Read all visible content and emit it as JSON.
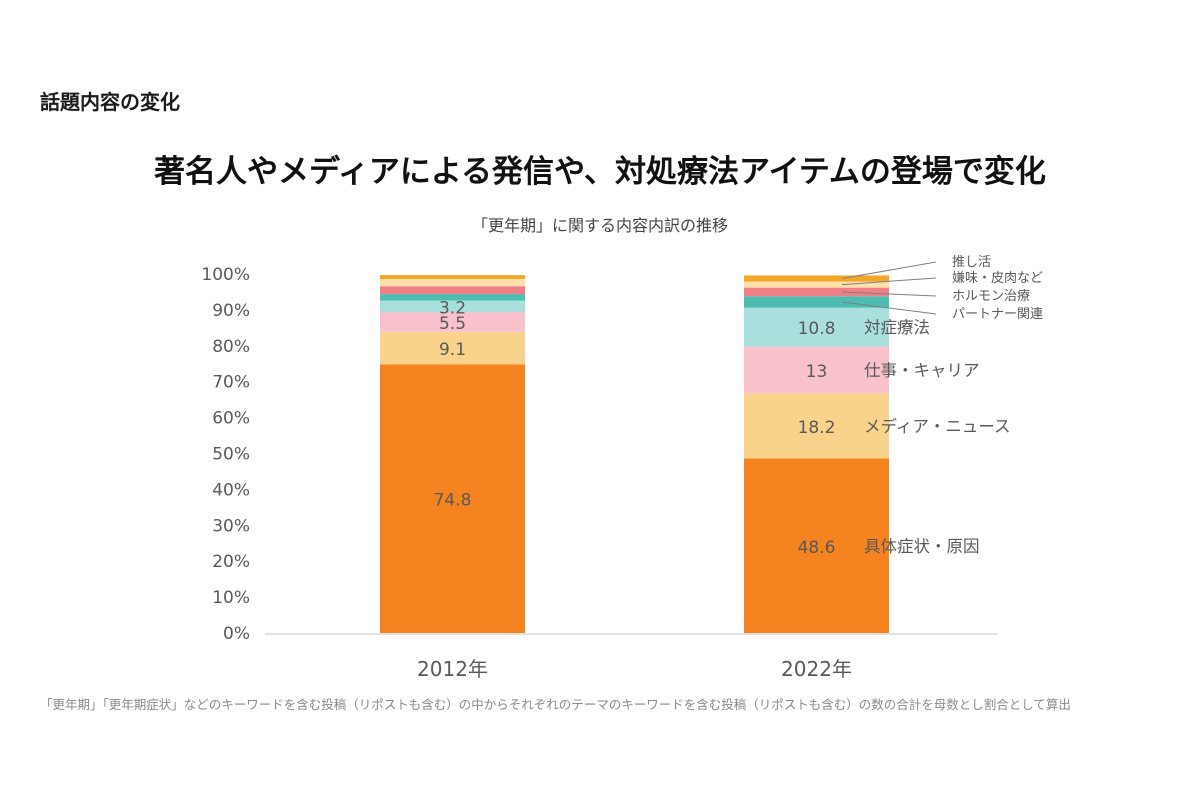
{
  "header": {
    "section_label": "話題内容の変化",
    "headline": "著名人やメディアによる発信や、対処療法アイテムの登場で変化"
  },
  "footnote": "「更年期」「更年期症状」などのキーワードを含む投稿（リポストも含む）の中からそれぞれのテーマのキーワードを含む投稿（リポストも含む）の数の合計を母数とし割合として算出",
  "chart_data": {
    "type": "bar",
    "stacked": true,
    "title": "「更年期」に関する内容内訳の推移",
    "xlabel": "",
    "ylabel": "",
    "ylim": [
      0,
      100
    ],
    "y_ticks": [
      "0%",
      "10%",
      "20%",
      "30%",
      "40%",
      "50%",
      "60%",
      "70%",
      "80%",
      "90%",
      "100%"
    ],
    "grid": false,
    "categories": [
      "2012年",
      "2022年"
    ],
    "series": [
      {
        "name": "具体症状・原因",
        "values": [
          74.8,
          48.6
        ],
        "labels": [
          "74.8",
          "48.6"
        ],
        "color": "#f58420"
      },
      {
        "name": "メディア・ニュース",
        "values": [
          9.1,
          18.2
        ],
        "labels": [
          "9.1",
          "18.2"
        ],
        "color": "#f9d28b"
      },
      {
        "name": "仕事・キャリア",
        "values": [
          5.5,
          13
        ],
        "labels": [
          "5.5",
          "13"
        ],
        "color": "#f8c1cb"
      },
      {
        "name": "対症療法",
        "values": [
          3.2,
          10.8
        ],
        "labels": [
          "3.2",
          "10.8"
        ],
        "color": "#a9e0de"
      },
      {
        "name": "パートナー関連",
        "values": [
          1.8,
          3.2
        ],
        "labels": [
          "",
          ""
        ],
        "color": "#4dbdb2"
      },
      {
        "name": "ホルモン治療",
        "values": [
          2.2,
          2.4
        ],
        "labels": [
          "",
          ""
        ],
        "color": "#ef7f87"
      },
      {
        "name": "嫌味・皮肉など",
        "values": [
          2.0,
          1.7
        ],
        "labels": [
          "",
          ""
        ],
        "color": "#fbe0a9"
      },
      {
        "name": "推し活",
        "values": [
          1.1,
          1.7
        ],
        "labels": [
          "",
          ""
        ],
        "color": "#f2a728"
      }
    ],
    "legend": {
      "placement": "right-of-bars",
      "series_names": [
        "具体症状・原因",
        "メディア・ニュース",
        "仕事・キャリア",
        "対症療法"
      ],
      "callout_names": [
        "推し活",
        "嫌味・皮肉など",
        "ホルモン治療",
        "パートナー関連"
      ]
    }
  }
}
